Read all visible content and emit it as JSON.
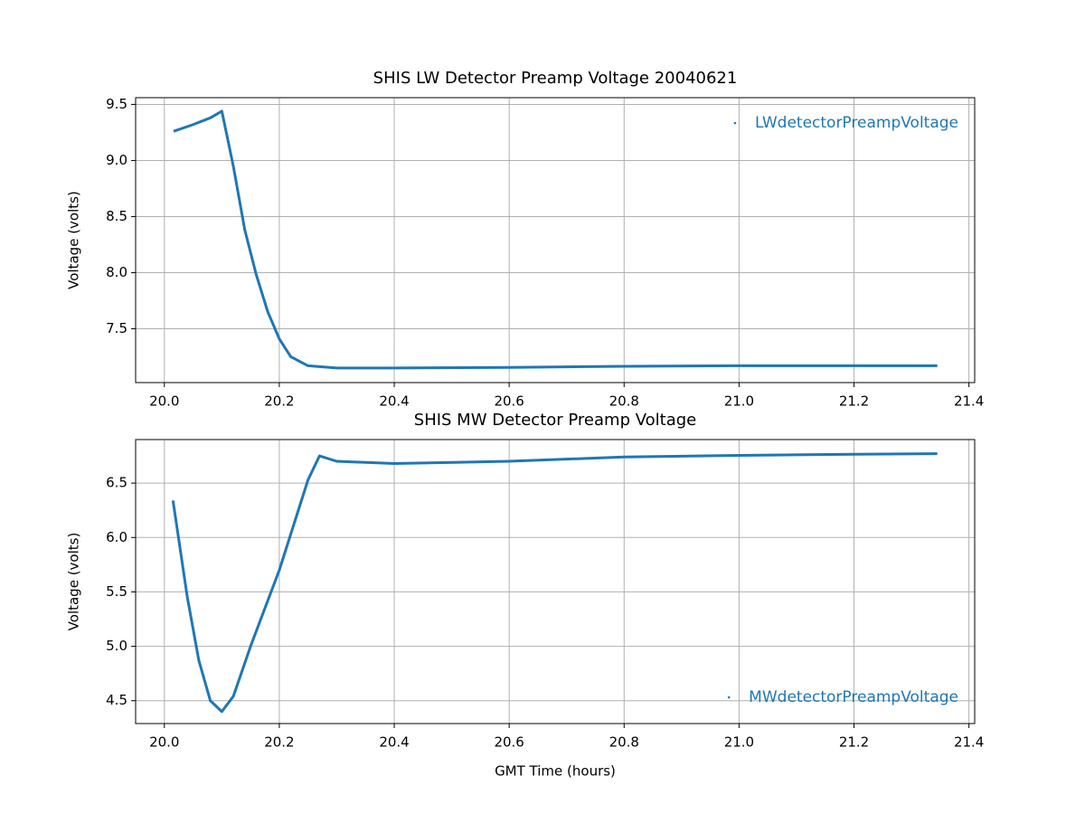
{
  "chart_data": [
    {
      "type": "line",
      "title": "SHIS LW Detector Preamp Voltage 20040621",
      "ylabel": "Voltage (volts)",
      "x": [
        20.016,
        20.05,
        20.08,
        20.1,
        20.12,
        20.14,
        20.16,
        20.18,
        20.2,
        20.22,
        20.25,
        20.3,
        20.4,
        20.6,
        20.8,
        21.0,
        21.2,
        21.345
      ],
      "series": [
        {
          "name": "LWdetectorPreampVoltage",
          "color": "#1f77b4",
          "values": [
            9.26,
            9.32,
            9.38,
            9.44,
            8.95,
            8.38,
            7.98,
            7.65,
            7.41,
            7.25,
            7.17,
            7.15,
            7.15,
            7.155,
            7.165,
            7.17,
            7.17,
            7.17
          ]
        }
      ],
      "xlim": [
        19.95,
        21.41
      ],
      "ylim": [
        7.02,
        9.56
      ],
      "xticks": [
        {
          "value": 20,
          "label": "20.0"
        },
        20.2,
        20.4,
        20.6,
        20.8,
        {
          "value": 21,
          "label": "21.0"
        },
        21.2,
        21.4
      ],
      "yticks": [
        7.5,
        {
          "value": 8,
          "label": "8.0"
        },
        8.5,
        {
          "value": 9,
          "label": "9.0"
        },
        9.5
      ],
      "grid": true,
      "legend": "upper right"
    },
    {
      "type": "line",
      "title": "SHIS MW Detector Preamp Voltage",
      "xlabel": "GMT Time (hours)",
      "ylabel": "Voltage (volts)",
      "x": [
        20.015,
        20.04,
        20.06,
        20.08,
        20.1,
        20.12,
        20.15,
        20.2,
        20.25,
        20.27,
        20.3,
        20.35,
        20.4,
        20.6,
        20.8,
        21.0,
        21.2,
        21.345
      ],
      "series": [
        {
          "name": "MWdetectorPreampVoltage",
          "color": "#1f77b4",
          "values": [
            6.34,
            5.45,
            4.87,
            4.5,
            4.4,
            4.54,
            5.0,
            5.7,
            6.53,
            6.75,
            6.7,
            6.69,
            6.68,
            6.7,
            6.74,
            6.755,
            6.765,
            6.77
          ]
        }
      ],
      "xlim": [
        19.95,
        21.41
      ],
      "ylim": [
        4.29,
        6.9
      ],
      "xticks": [
        {
          "value": 20,
          "label": "20.0"
        },
        20.2,
        20.4,
        20.6,
        20.8,
        {
          "value": 21,
          "label": "21.0"
        },
        21.2,
        21.4
      ],
      "yticks": [
        4.5,
        {
          "value": 5,
          "label": "5.0"
        },
        5.5,
        {
          "value": 6,
          "label": "6.0"
        },
        6.5
      ],
      "grid": true,
      "legend": "lower right"
    }
  ]
}
